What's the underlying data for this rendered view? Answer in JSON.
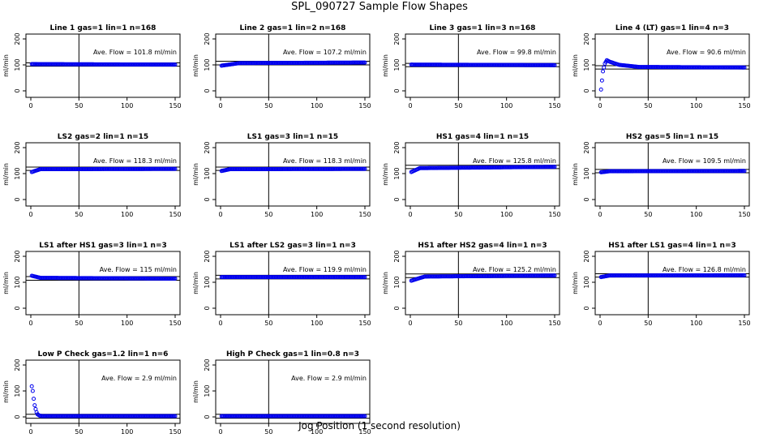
{
  "title": "SPL_090727  Sample Flow Shapes",
  "xlabel": "Jog Position (1 second resolution)",
  "colors": {
    "points": "#0000ee",
    "axes": "#000000"
  },
  "chart_data": [
    {
      "type": "scatter",
      "title": "Line 1 gas=1 lin=1 n=168",
      "annotation": "Ave. Flow =  101.8  ml/min",
      "ylabel": "ml/min",
      "xlim": [
        0,
        150
      ],
      "ylim": [
        0,
        200
      ],
      "xticks": [
        0,
        50,
        100,
        150
      ],
      "yticks": [
        0,
        100,
        200
      ],
      "vline": 50,
      "hlines": [
        95,
        108
      ],
      "series": [
        {
          "name": "flow",
          "profile": "flat",
          "values": [
            [
              1,
              103
            ],
            [
              150,
              101
            ]
          ]
        }
      ]
    },
    {
      "type": "scatter",
      "title": "Line 2 gas=1 lin=2 n=168",
      "annotation": "Ave. Flow =  107.2  ml/min",
      "ylabel": "ml/min",
      "xlim": [
        0,
        150
      ],
      "ylim": [
        0,
        200
      ],
      "xticks": [
        0,
        50,
        100,
        150
      ],
      "yticks": [
        0,
        100,
        200
      ],
      "vline": 50,
      "hlines": [
        100,
        114
      ],
      "series": [
        {
          "name": "flow",
          "profile": "ramp",
          "values": [
            [
              1,
              97
            ],
            [
              20,
              107
            ],
            [
              150,
              109
            ]
          ]
        }
      ]
    },
    {
      "type": "scatter",
      "title": "Line 3 gas=1 lin=3 n=168",
      "annotation": "Ave. Flow =  99.8  ml/min",
      "ylabel": "ml/min",
      "xlim": [
        0,
        150
      ],
      "ylim": [
        0,
        200
      ],
      "xticks": [
        0,
        50,
        100,
        150
      ],
      "yticks": [
        0,
        100,
        200
      ],
      "vline": 50,
      "hlines": [
        93,
        106
      ],
      "series": [
        {
          "name": "flow",
          "profile": "flat",
          "values": [
            [
              1,
              101
            ],
            [
              150,
              99
            ]
          ]
        }
      ]
    },
    {
      "type": "scatter",
      "title": "Line 4 (LT) gas=1 lin=4 n=3",
      "annotation": "Ave. Flow =  90.6  ml/min",
      "ylabel": "ml/min",
      "xlim": [
        0,
        150
      ],
      "ylim": [
        0,
        200
      ],
      "xticks": [
        0,
        50,
        100,
        150
      ],
      "yticks": [
        0,
        100,
        200
      ],
      "vline": 50,
      "hlines": [
        84,
        97
      ],
      "series": [
        {
          "name": "flow",
          "profile": "overshoot",
          "values": [
            [
              1,
              5
            ],
            [
              2,
              40
            ],
            [
              3,
              75
            ],
            [
              5,
              105
            ],
            [
              7,
              118
            ],
            [
              10,
              112
            ],
            [
              20,
              100
            ],
            [
              40,
              92
            ],
            [
              150,
              90
            ]
          ]
        }
      ]
    },
    {
      "type": "scatter",
      "title": "LS2 gas=2 lin=1 n=15",
      "annotation": "Ave. Flow =  118.3  ml/min",
      "ylabel": "ml/min",
      "xlim": [
        0,
        150
      ],
      "ylim": [
        0,
        200
      ],
      "xticks": [
        0,
        50,
        100,
        150
      ],
      "yticks": [
        0,
        100,
        200
      ],
      "vline": 50,
      "hlines": [
        112,
        125
      ],
      "series": [
        {
          "name": "flow",
          "profile": "ramp",
          "values": [
            [
              1,
              106
            ],
            [
              10,
              117
            ],
            [
              150,
              118
            ]
          ]
        }
      ]
    },
    {
      "type": "scatter",
      "title": "LS1 gas=3 lin=1 n=15",
      "annotation": "Ave. Flow =  118.3  ml/min",
      "ylabel": "ml/min",
      "xlim": [
        0,
        150
      ],
      "ylim": [
        0,
        200
      ],
      "xticks": [
        0,
        50,
        100,
        150
      ],
      "yticks": [
        0,
        100,
        200
      ],
      "vline": 50,
      "hlines": [
        112,
        125
      ],
      "series": [
        {
          "name": "flow",
          "profile": "ramp",
          "values": [
            [
              1,
              110
            ],
            [
              10,
              117
            ],
            [
              150,
              118
            ]
          ]
        }
      ]
    },
    {
      "type": "scatter",
      "title": "HS1 gas=4 lin=1 n=15",
      "annotation": "Ave. Flow =  125.8  ml/min",
      "ylabel": "ml/min",
      "xlim": [
        0,
        150
      ],
      "ylim": [
        0,
        200
      ],
      "xticks": [
        0,
        50,
        100,
        150
      ],
      "yticks": [
        0,
        100,
        200
      ],
      "vline": 50,
      "hlines": [
        119,
        132
      ],
      "series": [
        {
          "name": "flow",
          "profile": "ramp",
          "values": [
            [
              1,
              106
            ],
            [
              10,
              121
            ],
            [
              150,
              126
            ]
          ]
        }
      ]
    },
    {
      "type": "scatter",
      "title": "HS2 gas=5 lin=1 n=15",
      "annotation": "Ave. Flow =  109.5  ml/min",
      "ylabel": "ml/min",
      "xlim": [
        0,
        150
      ],
      "ylim": [
        0,
        200
      ],
      "xticks": [
        0,
        50,
        100,
        150
      ],
      "yticks": [
        0,
        100,
        200
      ],
      "vline": 50,
      "hlines": [
        103,
        116
      ],
      "series": [
        {
          "name": "flow",
          "profile": "ramp",
          "values": [
            [
              1,
              105
            ],
            [
              10,
              109
            ],
            [
              150,
              110
            ]
          ]
        }
      ]
    },
    {
      "type": "scatter",
      "title": "LS1 after HS1 gas=3 lin=1 n=3",
      "annotation": "Ave. Flow =  115  ml/min",
      "ylabel": "ml/min",
      "xlim": [
        0,
        150
      ],
      "ylim": [
        0,
        200
      ],
      "xticks": [
        0,
        50,
        100,
        150
      ],
      "yticks": [
        0,
        100,
        200
      ],
      "vline": 50,
      "hlines": [
        108,
        122
      ],
      "series": [
        {
          "name": "flow",
          "profile": "decay",
          "values": [
            [
              1,
              125
            ],
            [
              10,
              117
            ],
            [
              150,
              114
            ]
          ]
        }
      ]
    },
    {
      "type": "scatter",
      "title": "LS1 after LS2 gas=3 lin=1 n=3",
      "annotation": "Ave. Flow =  119.9  ml/min",
      "ylabel": "ml/min",
      "xlim": [
        0,
        150
      ],
      "ylim": [
        0,
        200
      ],
      "xticks": [
        0,
        50,
        100,
        150
      ],
      "yticks": [
        0,
        100,
        200
      ],
      "vline": 50,
      "hlines": [
        113,
        127
      ],
      "series": [
        {
          "name": "flow",
          "profile": "flat",
          "values": [
            [
              1,
              120
            ],
            [
              150,
              120
            ]
          ]
        }
      ]
    },
    {
      "type": "scatter",
      "title": "HS1 after HS2 gas=4 lin=1 n=3",
      "annotation": "Ave. Flow =  125.2  ml/min",
      "ylabel": "ml/min",
      "xlim": [
        0,
        150
      ],
      "ylim": [
        0,
        200
      ],
      "xticks": [
        0,
        50,
        100,
        150
      ],
      "yticks": [
        0,
        100,
        200
      ],
      "vline": 50,
      "hlines": [
        118,
        132
      ],
      "series": [
        {
          "name": "flow",
          "profile": "ramp",
          "values": [
            [
              1,
              106
            ],
            [
              15,
              122
            ],
            [
              150,
              126
            ]
          ]
        }
      ]
    },
    {
      "type": "scatter",
      "title": "HS1 after LS1 gas=4 lin=1 n=3",
      "annotation": "Ave. Flow =  126.8  ml/min",
      "ylabel": "ml/min",
      "xlim": [
        0,
        150
      ],
      "ylim": [
        0,
        200
      ],
      "xticks": [
        0,
        50,
        100,
        150
      ],
      "yticks": [
        0,
        100,
        200
      ],
      "vline": 50,
      "hlines": [
        120,
        133
      ],
      "series": [
        {
          "name": "flow",
          "profile": "ramp",
          "values": [
            [
              1,
              120
            ],
            [
              10,
              126
            ],
            [
              150,
              127
            ]
          ]
        }
      ]
    },
    {
      "type": "scatter",
      "title": "Low P Check gas=1.2 lin=1 n=6",
      "annotation": "Ave. Flow =  2.9  ml/min",
      "ylabel": "ml/min",
      "xlim": [
        0,
        150
      ],
      "ylim": [
        0,
        200
      ],
      "xticks": [
        0,
        50,
        100,
        150
      ],
      "yticks": [
        0,
        100,
        200
      ],
      "vline": 50,
      "hlines": [
        -5,
        10
      ],
      "series": [
        {
          "name": "flow",
          "profile": "falloff",
          "values": [
            [
              1,
              118
            ],
            [
              2,
              100
            ],
            [
              3,
              70
            ],
            [
              4,
              45
            ],
            [
              5,
              30
            ],
            [
              6,
              18
            ],
            [
              7,
              10
            ],
            [
              9,
              5
            ],
            [
              12,
              3
            ],
            [
              150,
              3
            ]
          ]
        }
      ]
    },
    {
      "type": "scatter",
      "title": "High P Check gas=1 lin=0.8 n=3",
      "annotation": "Ave. Flow =  2.9  ml/min",
      "ylabel": "ml/min",
      "xlim": [
        0,
        150
      ],
      "ylim": [
        0,
        200
      ],
      "xticks": [
        0,
        50,
        100,
        150
      ],
      "yticks": [
        0,
        100,
        200
      ],
      "vline": 50,
      "hlines": [
        -5,
        10
      ],
      "series": [
        {
          "name": "flow",
          "profile": "flat",
          "values": [
            [
              1,
              3
            ],
            [
              150,
              3
            ]
          ]
        }
      ]
    }
  ]
}
